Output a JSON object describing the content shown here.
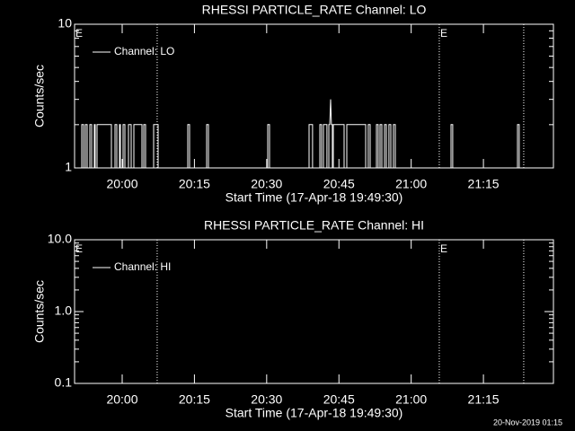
{
  "chart_data": [
    {
      "type": "line",
      "title": "RHESSI PARTICLE_RATE Channel: LO",
      "xlabel": "Start Time (17-Apr-18 19:49:30)",
      "ylabel": "Counts/sec",
      "log_y": true,
      "xlim": [
        37,
        6002
      ],
      "xticks": [
        {
          "value": 630,
          "label": "20:00"
        },
        {
          "value": 1530,
          "label": "20:15"
        },
        {
          "value": 2430,
          "label": "20:30"
        },
        {
          "value": 3330,
          "label": "20:45"
        },
        {
          "value": 4230,
          "label": "21:00"
        },
        {
          "value": 5130,
          "label": "21:15"
        }
      ],
      "ylim": [
        1,
        10
      ],
      "yticks": [
        1,
        10
      ],
      "yminorticks": [
        2,
        3,
        4,
        5,
        6,
        7,
        8,
        9
      ],
      "x": [
        127,
        127,
        149,
        149,
        171,
        171,
        194,
        194,
        227,
        227,
        250,
        250,
        283,
        283,
        294,
        294,
        317,
        317,
        496,
        496,
        541,
        541,
        563,
        563,
        597,
        597,
        608,
        608,
        641,
        641,
        664,
        664,
        708,
        708,
        742,
        742,
        776,
        776,
        876,
        876,
        899,
        899,
        921,
        921,
        1022,
        1022,
        1078,
        1078,
        1447,
        1447,
        1469,
        1469,
        1682,
        1682,
        1704,
        1704,
        2443,
        2443,
        2465,
        2465,
        2958,
        2958,
        3002,
        3002,
        3092,
        3092,
        3114,
        3114,
        3137,
        3137,
        3181,
        3181,
        3204,
        3204,
        3215,
        3226,
        3237,
        3248,
        3248,
        3260,
        3260,
        3394,
        3394,
        3428,
        3428,
        3663,
        3663,
        3696,
        3696,
        3719,
        3719,
        3797,
        3797,
        3819,
        3819,
        3842,
        3842,
        3864,
        3864,
        3898,
        3898,
        3920,
        3920,
        3953,
        3953,
        3976,
        3976,
        4009,
        4009,
        4032,
        4032,
        4726,
        4726,
        4748,
        4748,
        5554,
        5554,
        5576,
        5576
      ],
      "series": [
        {
          "name": "Channel: LO",
          "color": "#ffffff",
          "values": [
            1,
            2,
            2,
            1,
            1,
            2,
            2,
            1,
            1,
            2,
            2,
            1,
            1,
            2,
            2,
            1,
            1,
            2,
            2,
            1,
            1,
            2,
            2,
            1,
            1,
            2,
            2,
            1,
            1,
            2,
            2,
            1,
            1,
            2,
            2,
            1,
            1,
            2,
            2,
            1,
            1,
            2,
            2,
            1,
            1,
            2,
            2,
            1,
            1,
            2,
            2,
            1,
            1,
            2,
            2,
            1,
            1,
            2,
            2,
            1,
            1,
            2,
            2,
            1,
            1,
            2,
            2,
            1,
            1,
            2,
            2,
            1,
            1,
            2,
            2,
            3,
            2,
            2,
            1,
            1,
            2,
            2,
            1,
            1,
            2,
            2,
            1,
            1,
            2,
            2,
            1,
            1,
            2,
            2,
            1,
            1,
            2,
            2,
            1,
            1,
            2,
            2,
            1,
            1,
            2,
            2,
            1,
            1,
            2,
            2,
            1,
            1,
            2,
            2,
            1,
            1,
            2,
            2,
            1
          ]
        }
      ],
      "vlines": [
        1066,
        4580,
        5632
      ],
      "annotations": [
        {
          "text": "E",
          "x": 37
        },
        {
          "text": "E",
          "x": 4580
        }
      ],
      "legend": "upper left"
    },
    {
      "type": "line",
      "title": "RHESSI PARTICLE_RATE Channel: HI",
      "xlabel": "Start Time (17-Apr-18 19:49:30)",
      "ylabel": "Counts/sec",
      "log_y": true,
      "xlim": [
        37,
        6002
      ],
      "xticks": [
        {
          "value": 630,
          "label": "20:00"
        },
        {
          "value": 1530,
          "label": "20:15"
        },
        {
          "value": 2430,
          "label": "20:30"
        },
        {
          "value": 3330,
          "label": "20:45"
        },
        {
          "value": 4230,
          "label": "21:00"
        },
        {
          "value": 5130,
          "label": "21:15"
        }
      ],
      "ylim": [
        0.1,
        10
      ],
      "yticks": [
        0.1,
        {
          "value": 1,
          "label": "1.0"
        },
        {
          "value": 10,
          "label": "10.0"
        }
      ],
      "yminorticks": [
        0.2,
        0.3,
        0.4,
        0.5,
        0.6,
        0.7,
        0.8,
        0.9,
        2,
        3,
        4,
        5,
        6,
        7,
        8,
        9
      ],
      "x": [],
      "series": [
        {
          "name": "Channel: HI",
          "color": "#ffffff",
          "values": []
        }
      ],
      "vlines": [
        1066,
        4580,
        5632
      ],
      "annotations": [
        {
          "text": "E",
          "x": 37
        },
        {
          "text": "E",
          "x": 4580
        }
      ],
      "legend": "upper left"
    }
  ],
  "footer": "20-Nov-2019 01:15"
}
